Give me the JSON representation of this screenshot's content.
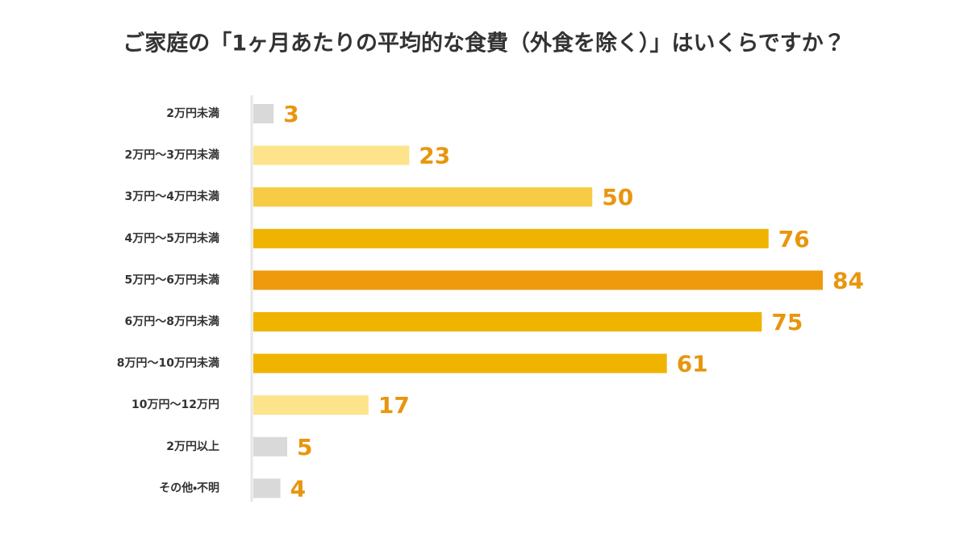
{
  "chart_data": {
    "type": "bar",
    "orientation": "horizontal",
    "title": "ご家庭の「1ヶ月あたりの平均的な食費（外食を除く）」はいくらですか？",
    "categories": [
      "2万円未満",
      "2万円〜3万円未満",
      "3万円〜4万円未満",
      "4万円〜5万円未満",
      "5万円〜6万円未満",
      "6万円〜8万円未満",
      "8万円〜10万円未満",
      "10万円〜12万円",
      "2万円以上",
      "その他・不明"
    ],
    "values": [
      3,
      23,
      50,
      76,
      84,
      75,
      61,
      17,
      5,
      4
    ],
    "colors": [
      "#d9d9d9",
      "#fde38a",
      "#f7cb45",
      "#f0b400",
      "#ef9a0c",
      "#f0b400",
      "#f0b400",
      "#fde38a",
      "#d9d9d9",
      "#d9d9d9"
    ],
    "label_color": "#e8960e"
  }
}
